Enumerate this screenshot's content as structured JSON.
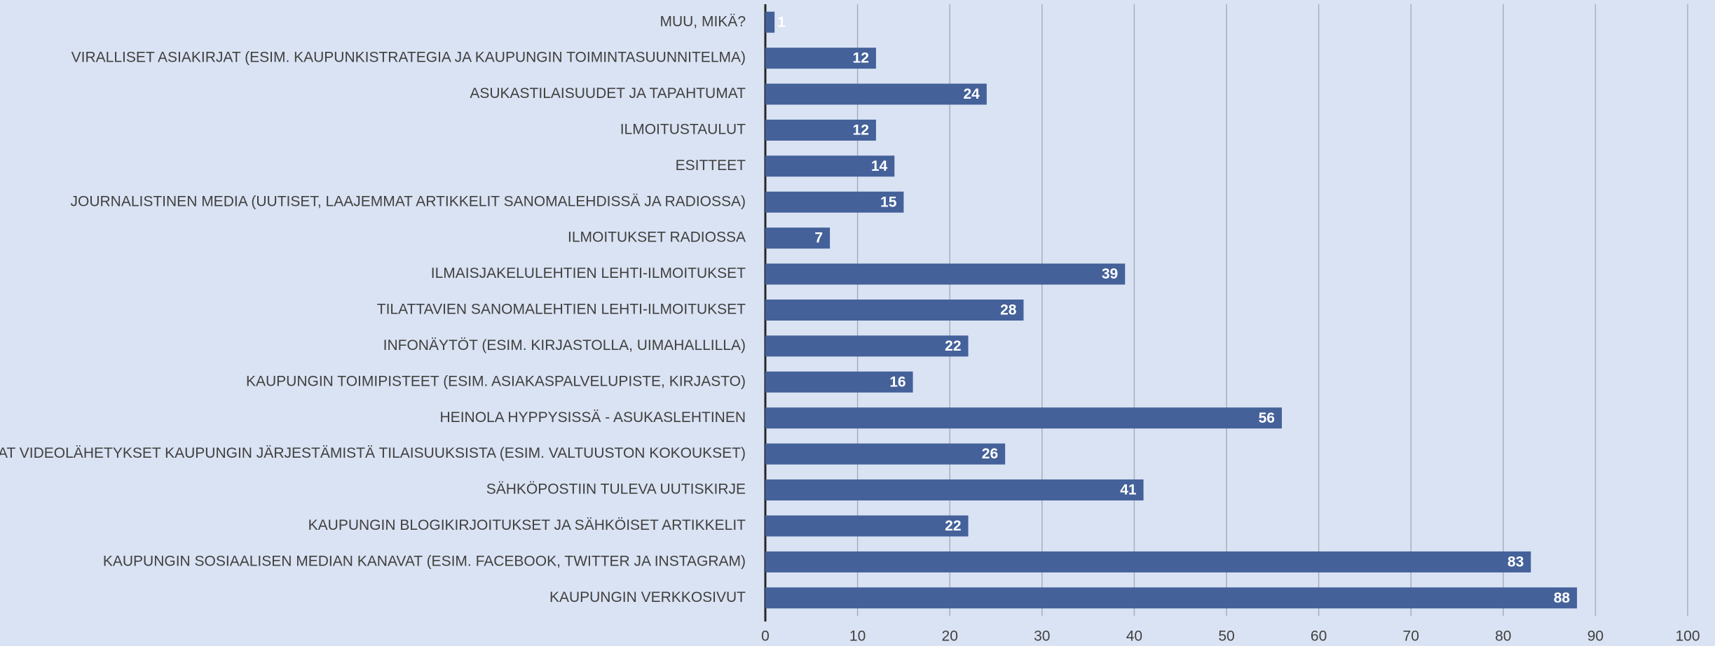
{
  "chart_data": {
    "type": "bar",
    "orientation": "horizontal",
    "categories": [
      "MUU, MIKÄ?",
      "VIRALLISET ASIAKIRJAT (ESIM. KAUPUNKISTRATEGIA JA KAUPUNGIN TOIMINTASUUNNITELMA)",
      "ASUKASTILAISUUDET JA TAPAHTUMAT",
      "ILMOITUSTAULUT",
      "ESITTEET",
      "JOURNALISTINEN MEDIA (UUTISET, LAAJEMMAT ARTIKKELIT SANOMALEHDISSÄ JA RADIOSSA)",
      "ILMOITUKSET RADIOSSA",
      "ILMAISJAKELULEHTIEN LEHTI-ILMOITUKSET",
      "TILATTAVIEN SANOMALEHTIEN LEHTI-ILMOITUKSET",
      "INFONÄYTÖT (ESIM. KIRJASTOLLA, UIMAHALLILLA)",
      "KAUPUNGIN TOIMIPISTEET (ESIM. ASIAKASPALVELUPISTE, KIRJASTO)",
      "HEINOLA HYPPYSISSÄ - ASUKASLEHTINEN",
      "SUORAT VIDEOLÄHETYKSET KAUPUNGIN JÄRJESTÄMISTÄ TILAISUUKSISTA (ESIM. VALTUUSTON KOKOUKSET)",
      "SÄHKÖPOSTIIN TULEVA UUTISKIRJE",
      "KAUPUNGIN BLOGIKIRJOITUKSET JA SÄHKÖISET ARTIKKELIT",
      "KAUPUNGIN SOSIAALISEN MEDIAN KANAVAT (ESIM. FACEBOOK, TWITTER JA INSTAGRAM)",
      "KAUPUNGIN VERKKOSIVUT"
    ],
    "values": [
      1,
      12,
      24,
      12,
      14,
      15,
      7,
      39,
      28,
      22,
      16,
      56,
      26,
      41,
      22,
      83,
      88
    ],
    "color": "#44619a",
    "xlim": [
      0,
      100
    ],
    "xticks": [
      0,
      10,
      20,
      30,
      40,
      50,
      60,
      70,
      80,
      90,
      100
    ],
    "grid": true
  }
}
